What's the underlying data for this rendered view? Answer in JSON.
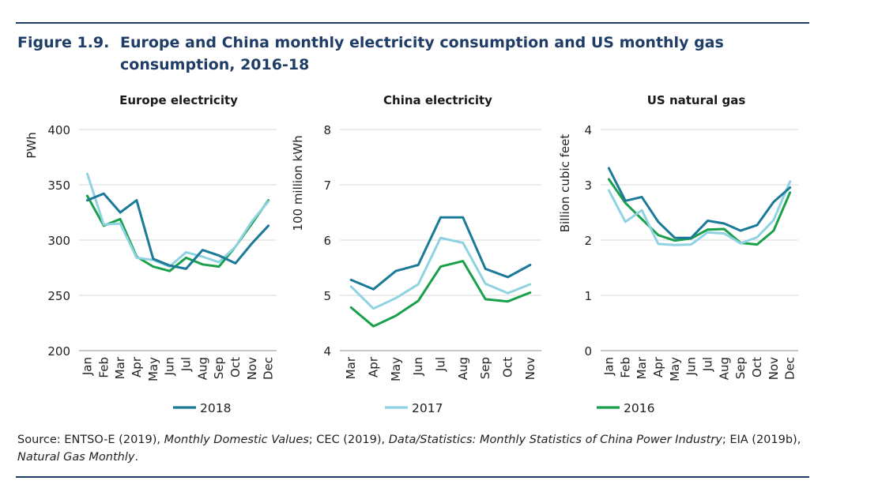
{
  "figure": {
    "number": "Figure 1.9.",
    "title": "Europe and China monthly electricity consumption and US monthly gas consumption, 2016-18"
  },
  "colors": {
    "2018": "#1a7a98",
    "2017": "#8fd3e3",
    "2016": "#1aa04a",
    "grid": "#d9d9d9",
    "axis": "#a6a6a6"
  },
  "legend": [
    "2018",
    "2017",
    "2016"
  ],
  "source": {
    "prefix": "Source: ENTSO-E (2019), ",
    "t1": "Monthly Domestic Values",
    "mid1": "; CEC (2019), ",
    "t2": "Data/Statistics: Monthly Statistics of China Power Industry",
    "mid2": "; EIA (2019b), ",
    "t3": "Natural Gas Monthly",
    "suffix": "."
  },
  "chart_data": [
    {
      "type": "line",
      "title": "Europe electricity",
      "ylabel": "PWh",
      "xlabel": "",
      "categories": [
        "Jan",
        "Feb",
        "Mar",
        "Apr",
        "May",
        "Jun",
        "Jul",
        "Aug",
        "Sep",
        "Oct",
        "Nov",
        "Dec"
      ],
      "ylim": [
        200,
        400
      ],
      "yticks": [
        200,
        250,
        300,
        350,
        400
      ],
      "grid": true,
      "series": [
        {
          "name": "2018",
          "values": [
            336,
            342,
            325,
            336,
            283,
            277,
            274,
            291,
            286,
            279,
            297,
            313
          ]
        },
        {
          "name": "2017",
          "values": [
            360,
            314,
            315,
            284,
            282,
            276,
            289,
            285,
            280,
            294,
            317,
            335
          ]
        },
        {
          "name": "2016",
          "values": [
            340,
            313,
            319,
            285,
            276,
            272,
            284,
            278,
            276,
            294,
            315,
            336
          ]
        }
      ]
    },
    {
      "type": "line",
      "title": "China electricity",
      "ylabel": "100 million kWh",
      "xlabel": "",
      "categories": [
        "Mar",
        "Apr",
        "May",
        "Jun",
        "Jul",
        "Aug",
        "Sep",
        "Oct",
        "Nov"
      ],
      "ylim": [
        4,
        8
      ],
      "yticks": [
        4,
        5,
        6,
        7,
        8
      ],
      "grid": true,
      "series": [
        {
          "name": "2018",
          "values": [
            5.28,
            5.11,
            5.44,
            5.55,
            6.41,
            6.41,
            5.48,
            5.33,
            5.55
          ]
        },
        {
          "name": "2017",
          "values": [
            5.16,
            4.76,
            4.95,
            5.2,
            6.04,
            5.95,
            5.21,
            5.04,
            5.2
          ]
        },
        {
          "name": "2016",
          "values": [
            4.78,
            4.44,
            4.63,
            4.9,
            5.52,
            5.62,
            4.93,
            4.89,
            5.05
          ]
        }
      ]
    },
    {
      "type": "line",
      "title": "US natural gas",
      "ylabel": "Billion cubic feet",
      "xlabel": "",
      "categories": [
        "Jan",
        "Feb",
        "Mar",
        "Apr",
        "May",
        "Jun",
        "Jul",
        "Aug",
        "Sep",
        "Oct",
        "Nov",
        "Dec"
      ],
      "ylim": [
        0,
        4
      ],
      "yticks": [
        0,
        1,
        2,
        3,
        4
      ],
      "grid": true,
      "series": [
        {
          "name": "2018",
          "values": [
            3.3,
            2.71,
            2.78,
            2.33,
            2.04,
            2.04,
            2.35,
            2.3,
            2.17,
            2.27,
            2.69,
            2.95
          ]
        },
        {
          "name": "2017",
          "values": [
            2.9,
            2.33,
            2.54,
            1.93,
            1.91,
            1.92,
            2.14,
            2.12,
            1.94,
            2.05,
            2.36,
            3.06
          ]
        },
        {
          "name": "2016",
          "values": [
            3.1,
            2.67,
            2.38,
            2.09,
            1.99,
            2.03,
            2.19,
            2.2,
            1.95,
            1.92,
            2.17,
            2.86
          ]
        }
      ]
    }
  ]
}
